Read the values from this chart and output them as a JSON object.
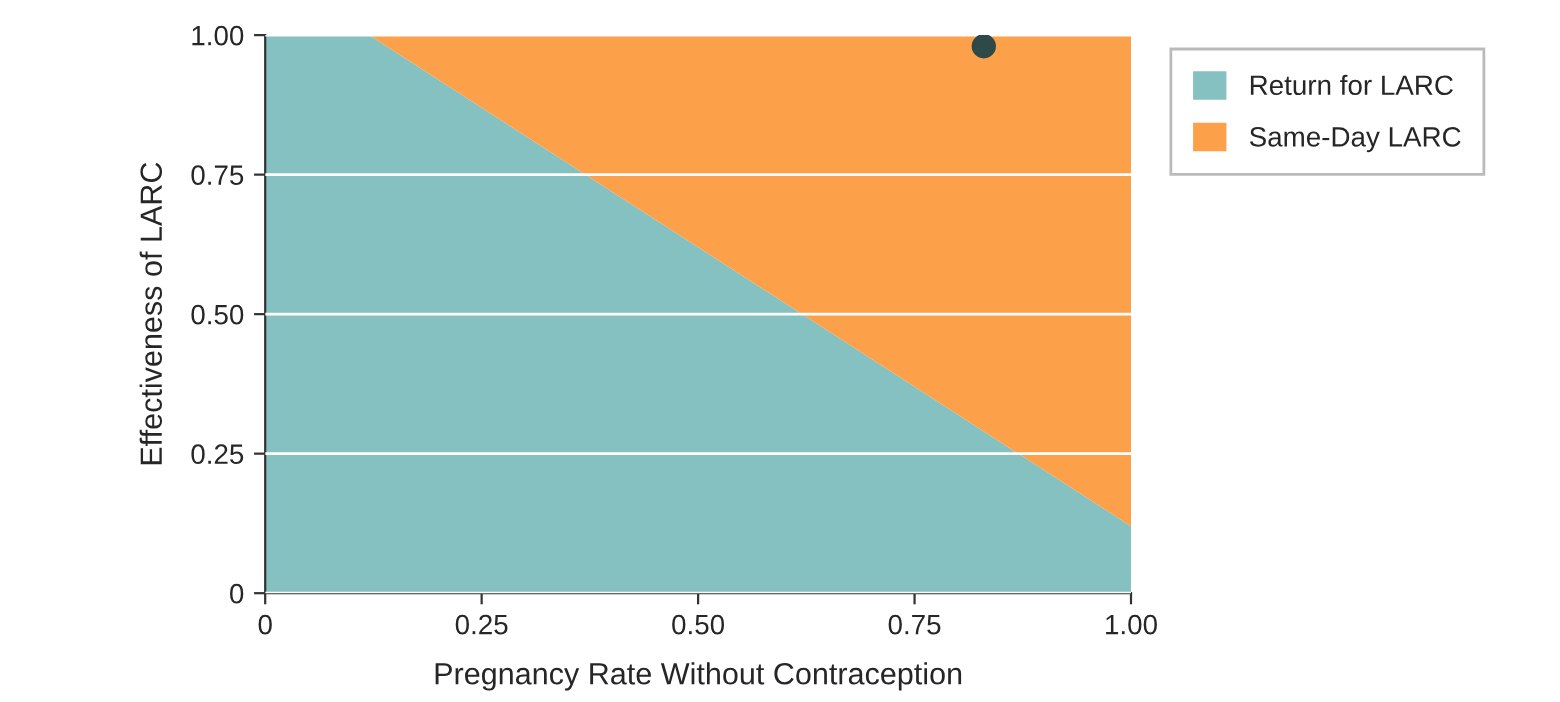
{
  "chart_data": {
    "type": "area",
    "xlabel": "Pregnancy Rate Without Contraception",
    "ylabel": "Effectiveness of LARC",
    "x": [
      0,
      0.12,
      1
    ],
    "stacked": true,
    "series": [
      {
        "name": "Return for LARC",
        "color": "#84c1c0",
        "values": [
          1,
          1,
          0.12
        ]
      },
      {
        "name": "Same-Day LARC",
        "color": "#fda04a",
        "values": [
          0,
          0,
          0.88
        ]
      },
      {
        "type": "scatter",
        "color": "#2d4a48",
        "x": [
          0.83
        ],
        "values": [
          0.98
        ],
        "marker": "circle"
      }
    ],
    "xlim": [
      0,
      1
    ],
    "ylim": [
      0,
      1
    ],
    "xticks": [
      0,
      {
        "value": 0.25,
        "label": "0.25"
      },
      {
        "value": 0.5,
        "label": "0.50"
      },
      {
        "value": 0.75,
        "label": "0.75"
      },
      {
        "value": 1,
        "label": "1.00"
      }
    ],
    "yticks": [
      0,
      {
        "value": 0.25,
        "label": "0.25"
      },
      {
        "value": 0.5,
        "label": "0.50"
      },
      {
        "value": 0.75,
        "label": "0.75"
      },
      {
        "value": 1,
        "label": "1.00"
      }
    ],
    "grid": "y",
    "legend": "right"
  }
}
